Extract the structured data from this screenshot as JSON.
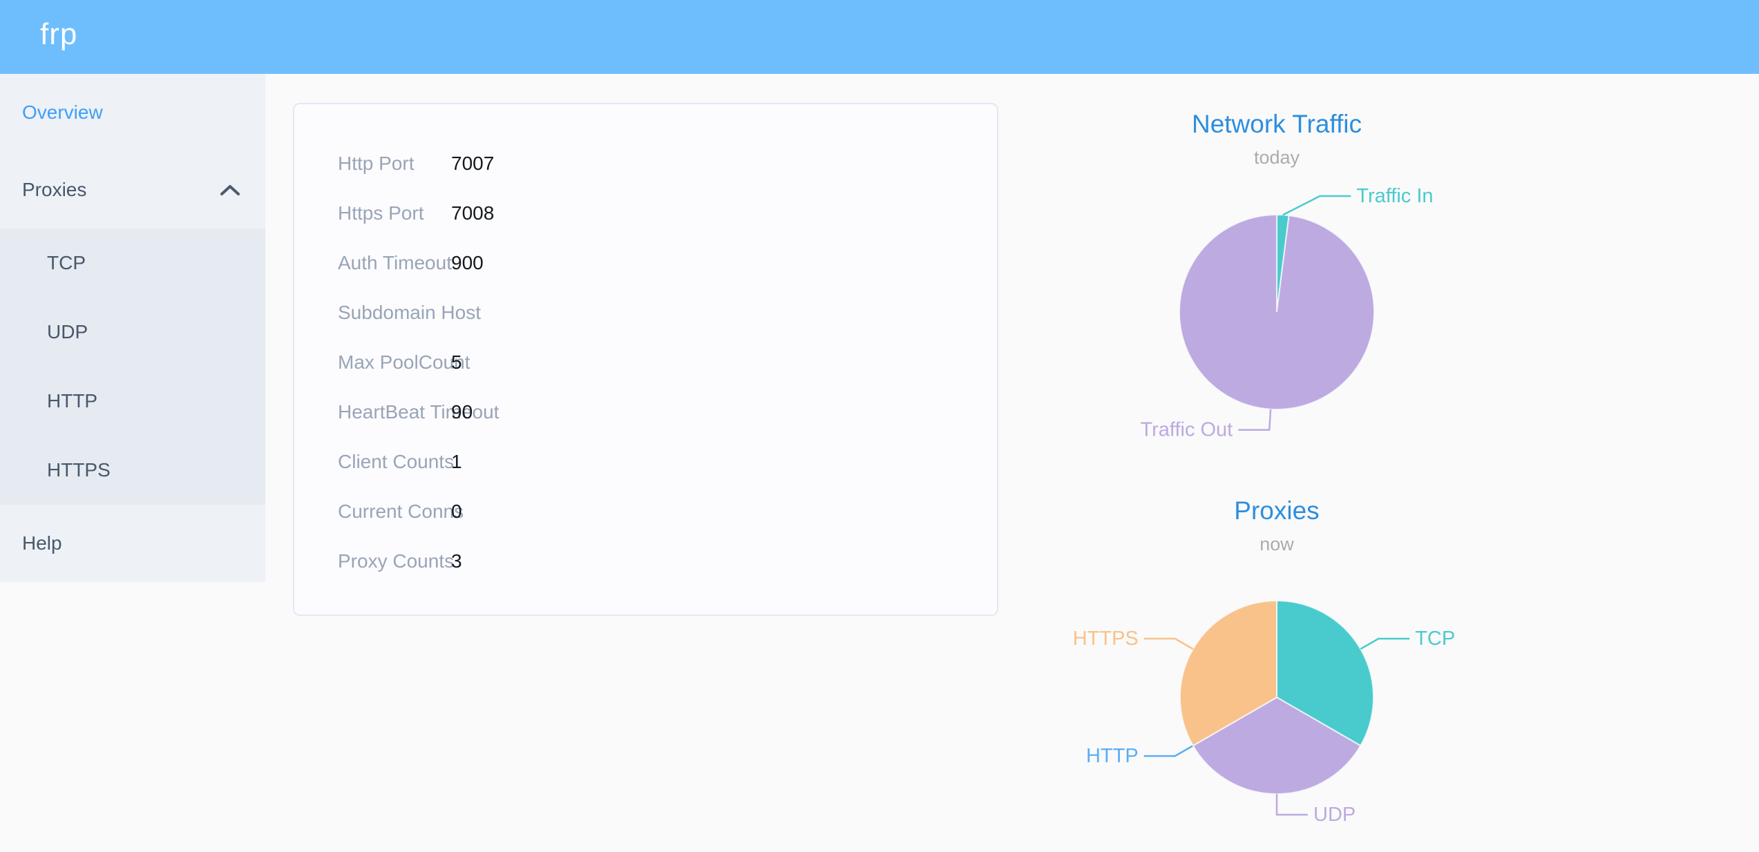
{
  "app": {
    "logo_text": "frp"
  },
  "colors": {
    "header-bg": "#6ebefd",
    "logo-text": "#ffffff",
    "page-bg": "#fafafa",
    "sidebar-bg": "#eef1f6",
    "sidebar-submenu-bg": "#e6eaf1",
    "sidebar-text": "#48576a",
    "sidebar-active-text": "#3d9ff9",
    "card-bg": "#fcfcfe",
    "card-border": "#e3e8f5",
    "label-text": "#99a4b7",
    "value-text": "#14181f",
    "chart-title": "#2d8edd",
    "chart-subtitle": "#ababab",
    "series-teal": "#49cbcd",
    "series-purple": "#bcaae1",
    "series-orange": "#f9c28a",
    "series-blue": "#5aaef3"
  },
  "sidebar": {
    "overview": "Overview",
    "proxies": "Proxies",
    "proxies_children": [
      "TCP",
      "UDP",
      "HTTP",
      "HTTPS"
    ],
    "help": "Help"
  },
  "server_info": {
    "rows": [
      {
        "label": "Http Port",
        "value": "7007"
      },
      {
        "label": "Https Port",
        "value": "7008"
      },
      {
        "label": "Auth Timeout",
        "value": "900"
      },
      {
        "label": "Subdomain Host",
        "value": ""
      },
      {
        "label": "Max PoolCount",
        "value": "5"
      },
      {
        "label": "HeartBeat Timeout",
        "value": "90"
      },
      {
        "label": "Client Counts",
        "value": "1"
      },
      {
        "label": "Current Conns",
        "value": "0"
      },
      {
        "label": "Proxy Counts",
        "value": "3"
      }
    ]
  },
  "chart_data": [
    {
      "type": "pie",
      "title": "Network Traffic",
      "subtitle": "today",
      "legend_position": "none",
      "values_are_estimated_pct": true,
      "series": [
        {
          "name": "Traffic In",
          "value": 2,
          "color": "#49cbcd",
          "leader_deg": 63,
          "leader_len": 60
        },
        {
          "name": "Traffic Out",
          "value": 98,
          "color": "#bcaae1"
        }
      ]
    },
    {
      "type": "pie",
      "title": "Proxies",
      "subtitle": "now",
      "legend_position": "none",
      "series": [
        {
          "name": "TCP",
          "value": 1,
          "color": "#49cbcd"
        },
        {
          "name": "UDP",
          "value": 1,
          "color": "#bcaae1"
        },
        {
          "name": "HTTP",
          "value": 0,
          "color": "#5aaef3"
        },
        {
          "name": "HTTPS",
          "value": 1,
          "color": "#f9c28a"
        }
      ]
    }
  ]
}
